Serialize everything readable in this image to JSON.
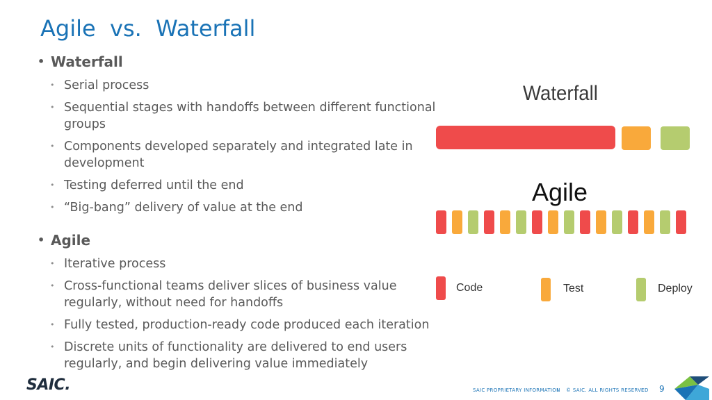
{
  "title": "Agile  vs.  Waterfall",
  "waterfall": {
    "heading": "Waterfall",
    "items": [
      "Serial process",
      "Sequential stages with handoffs between different functional groups",
      "Components developed separately and integrated late in development",
      "Testing deferred until the end",
      "“Big-bang” delivery of value at the end"
    ]
  },
  "agile": {
    "heading": "Agile",
    "items": [
      "Iterative process",
      "Cross-functional teams deliver slices of business value regularly, without need for handoffs",
      "Fully tested, production-ready code produced each iteration",
      "Discrete units of functionality are delivered to end users regularly, and begin delivering value immediately"
    ]
  },
  "graphic": {
    "waterfall_label": "Waterfall",
    "agile_label": "Agile",
    "legend": [
      "Code",
      "Test",
      "Deploy"
    ],
    "colors": {
      "code": "#ef4b4b",
      "test": "#f9a93b",
      "deploy": "#b5cc6f"
    }
  },
  "footer": {
    "logo": "SAIC.",
    "proprietary": "SAIC PROPRIETARY INFORMATION",
    "separator": "I",
    "rights": "© SAIC. ALL RIGHTS RESERVED",
    "page_number": "9"
  }
}
